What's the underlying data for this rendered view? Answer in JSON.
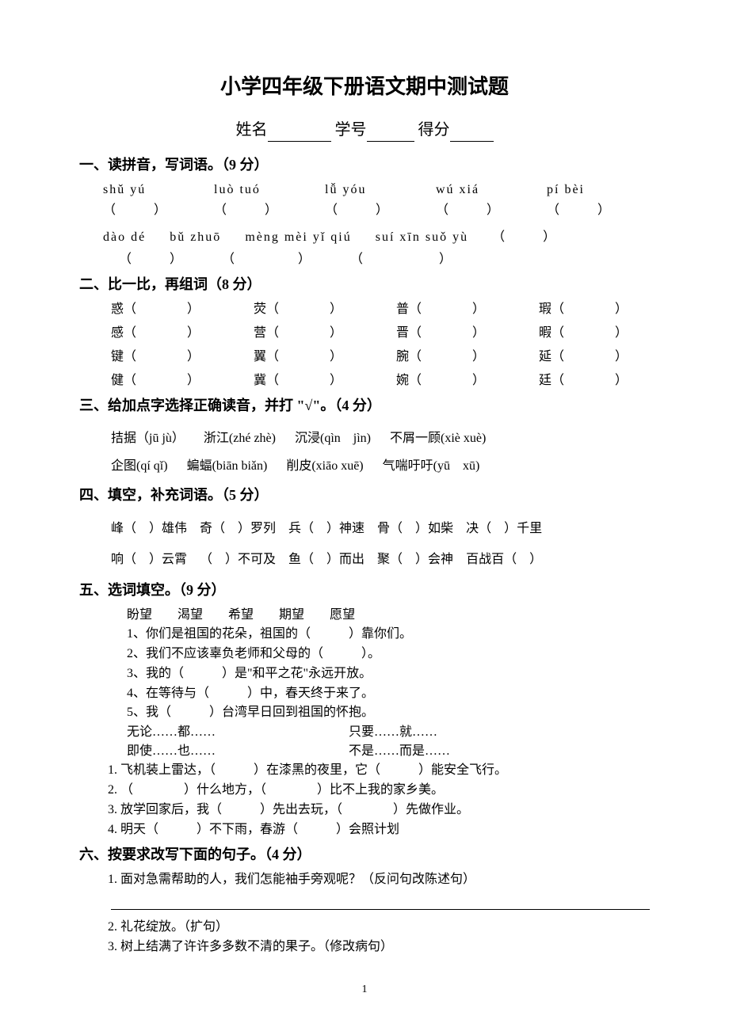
{
  "title": "小学四年级下册语文期中测试题",
  "header": {
    "name_label": "姓名",
    "id_label": "学号",
    "score_label": "得分"
  },
  "s1": {
    "title": "一、读拼音，写词语。（9 分）",
    "row1": [
      {
        "pinyin": "shǔ yú",
        "blank": "（　　　）"
      },
      {
        "pinyin": "luò tuó",
        "blank": "（　　　）"
      },
      {
        "pinyin": "lǚ yóu",
        "blank": "（　　　）"
      },
      {
        "pinyin": "wú xiá",
        "blank": "（　　　）"
      },
      {
        "pinyin": "pí bèi",
        "blank": "（　　　）"
      }
    ],
    "row2": [
      "dào dé",
      "bǔ zhuō",
      "mèng mèi yǐ qiú",
      "suí xīn suǒ yù"
    ],
    "row2_trail": "（　　　）",
    "row2_blanks": [
      "（　　　）",
      "（　　　　　）",
      "（　　　　　　）"
    ]
  },
  "s2": {
    "title": "二、比一比，再组词（8 分）",
    "rows": [
      [
        "惑（　　　　）",
        "荧（　　　　）",
        "普（　　　　）",
        "瑕（　　　　）"
      ],
      [
        "感（　　　　）",
        "营（　　　　）",
        "晋（　　　　）",
        "暇（　　　　）"
      ],
      [
        "键（　　　　）",
        "翼（　　　　）",
        "腕（　　　　）",
        "延（　　　　）"
      ],
      [
        "健（　　　　）",
        "冀（　　　　）",
        "婉（　　　　）",
        "廷（　　　　）"
      ]
    ]
  },
  "s3": {
    "title": "三、给加点字选择正确读音，并打 \"√\"。（4 分）",
    "line1": [
      "拮据（jū  jù）",
      "浙江(zhé  zhè)",
      "沉浸(qìn　jìn)",
      "不屑一顾(xiè  xuè)"
    ],
    "line2": [
      "企图(qí  qǐ)",
      "蝙蝠(biān  biǎn)",
      "削皮(xiāo  xuē)",
      "气喘吁吁(yū　xū)"
    ]
  },
  "s4": {
    "title": " 四、填空，补充词语。（5 分）",
    "line1": [
      "峰（　）雄伟",
      "奇（　）罗列",
      "兵（　）神速",
      "骨（　）如柴",
      "决（　）千里"
    ],
    "line2": [
      "响（　）云霄",
      "（　）不可及",
      "鱼（　）而出",
      "聚（　）会神",
      "百战百（　）"
    ]
  },
  "s5": {
    "title": "五、选词填空。（9 分）",
    "words": [
      "盼望",
      "渴望",
      "希望",
      "期望",
      "愿望"
    ],
    "items1": [
      "1、你们是祖国的花朵，祖国的（　　　）靠你们。",
      "2、我们不应该辜负老师和父母的（　　　）。",
      "3、我的（　　　）是\"和平之花\"永远开放。",
      "4、在等待与（　　　）中，春天终于来了。",
      "5、我（　　　）台湾早日回到祖国的怀抱。"
    ],
    "conj": [
      {
        "left": "无论……都……",
        "right": "只要……就……"
      },
      {
        "left": "即使……也……",
        "right": "不是……而是……"
      }
    ],
    "items2": [
      "1.  飞机装上雷达，（　　　）在漆黑的夜里，它（　　　）能安全飞行。",
      "2.  （　　　　）什么地方，（　　　　）比不上我的家乡美。",
      "3.  放学回家后，我（　　　）先出去玩，（　　　　）先做作业。",
      "4.  明天（　　　）不下雨，春游（　　　）会照计划"
    ]
  },
  "s6": {
    "title": "六、按要求改写下面的句子。（4 分）",
    "items": [
      "1.  面对急需帮助的人，我们怎能袖手旁观呢？（反问句改陈述句）",
      "2. 礼花绽放。（扩句）",
      "3.  树上结满了许许多多数不清的果子。（修改病句）"
    ]
  },
  "page_number": "1"
}
